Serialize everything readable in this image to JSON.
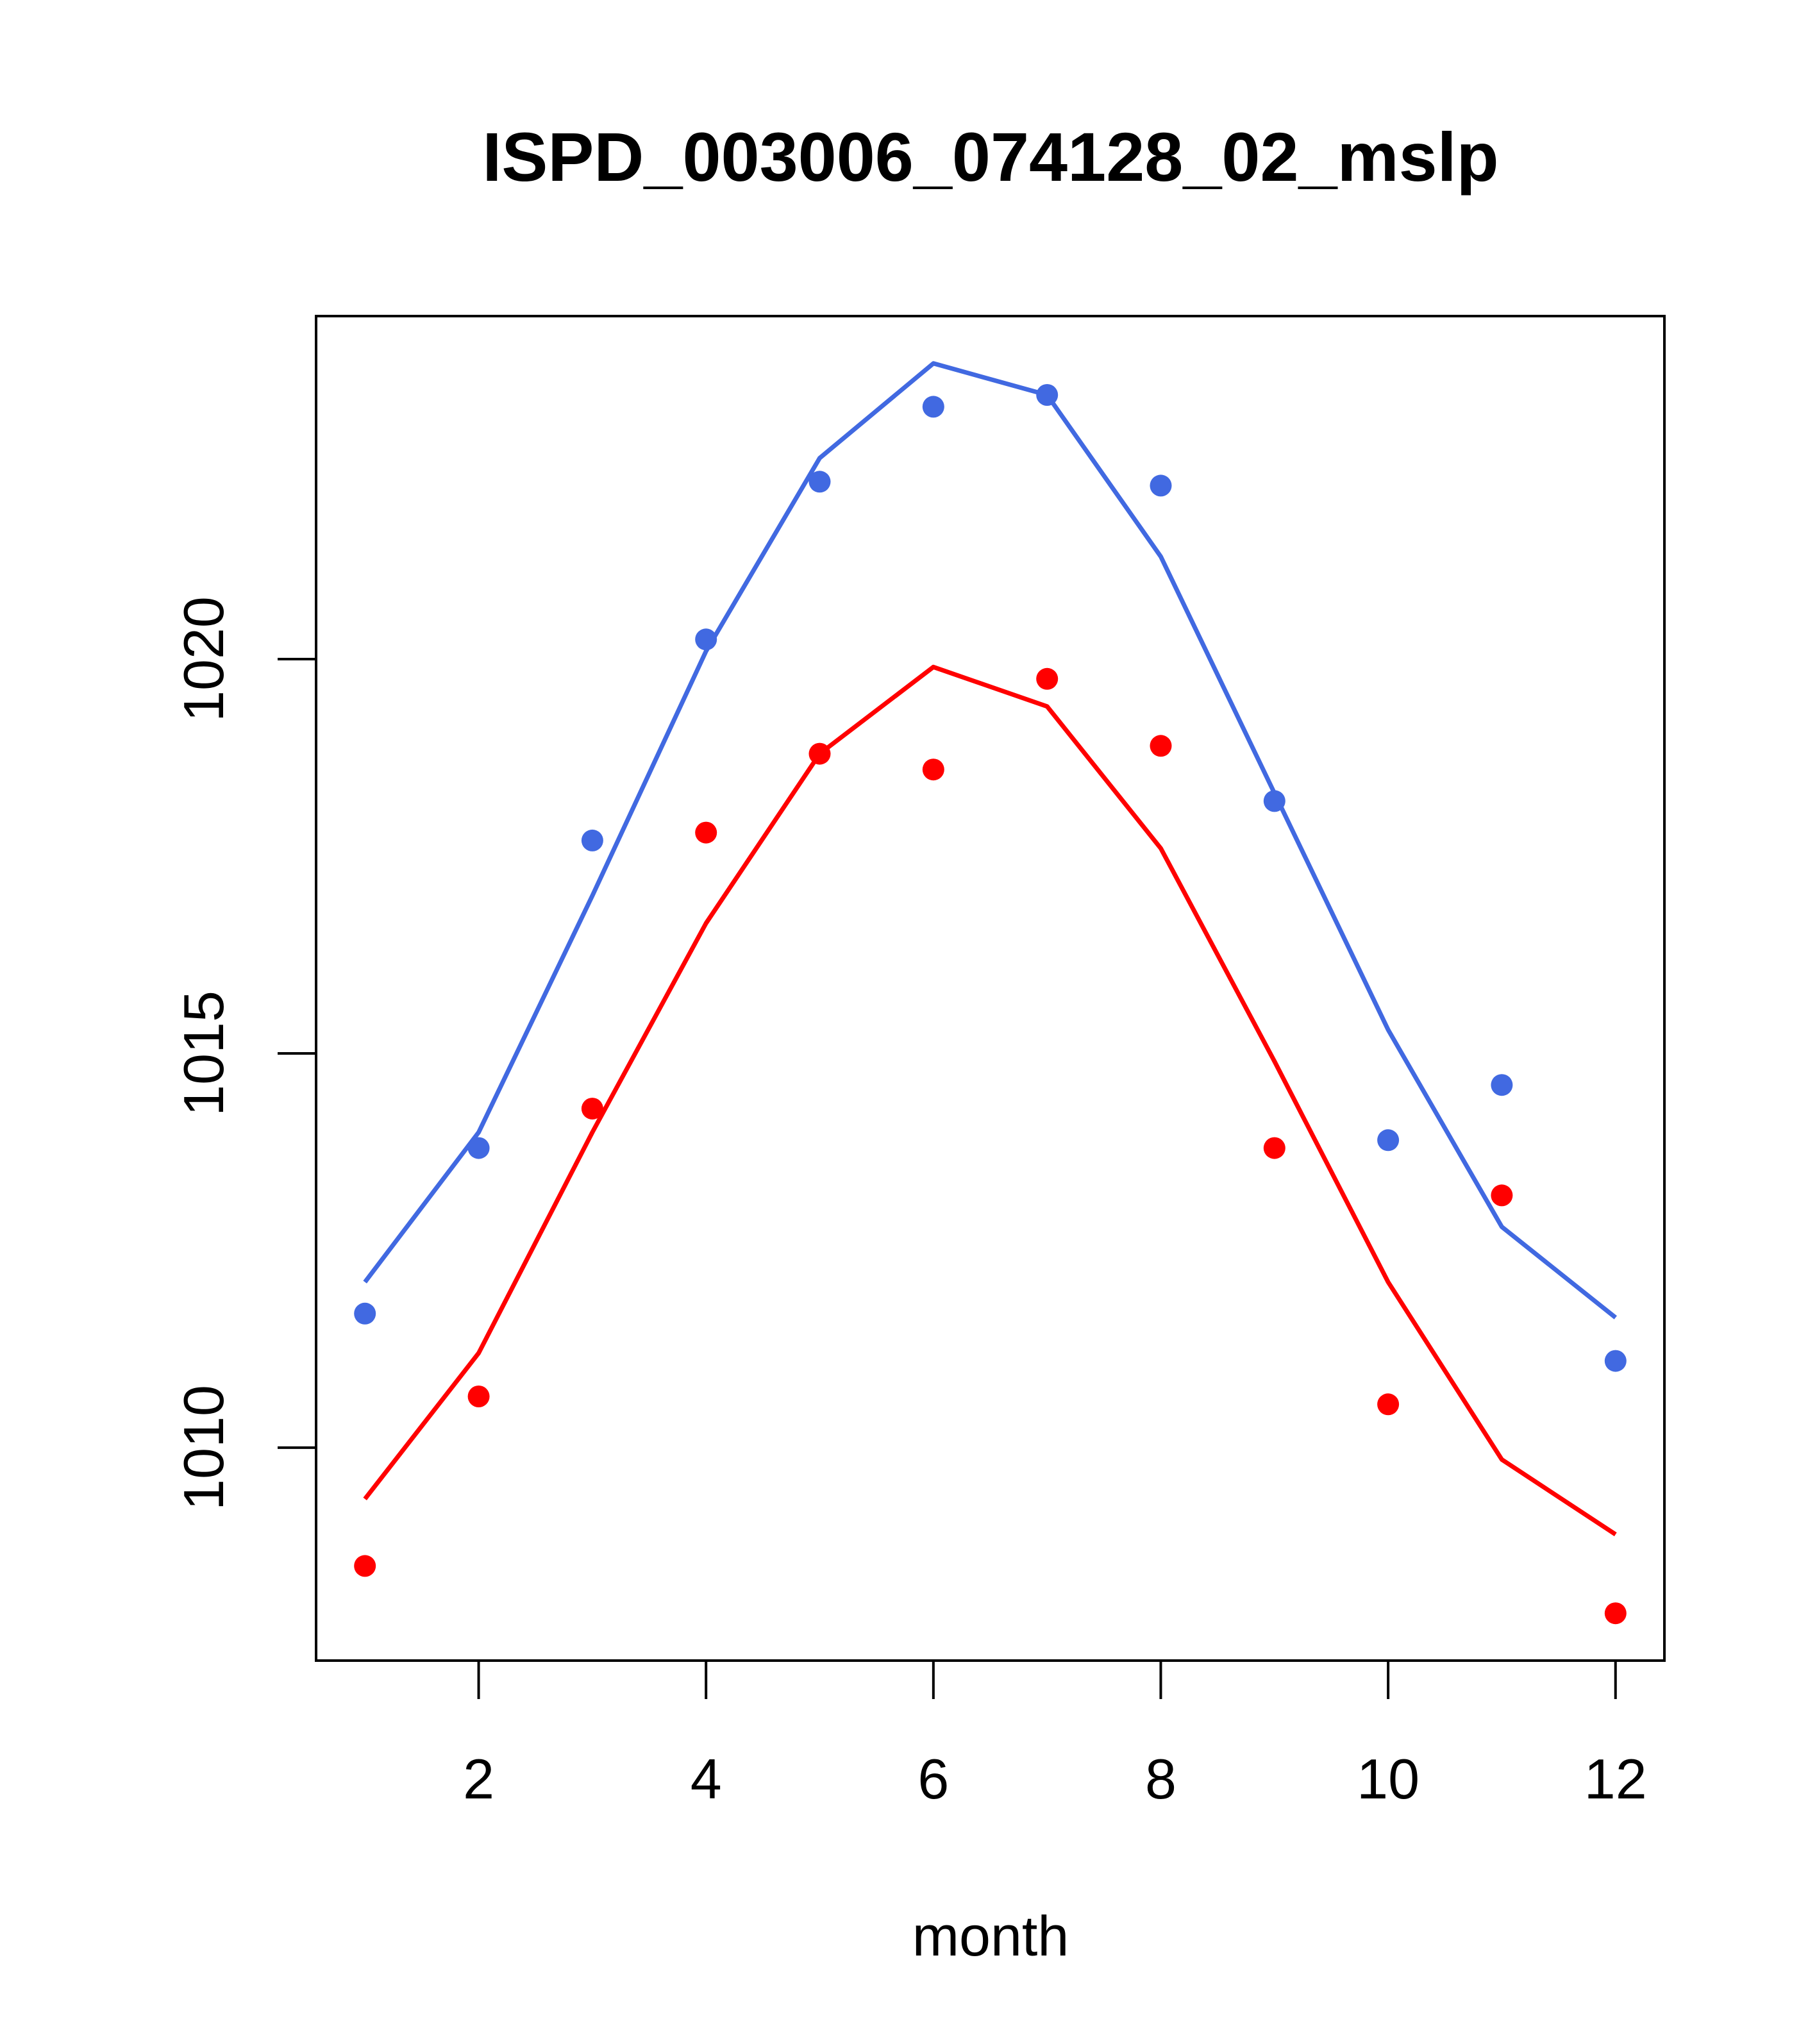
{
  "chart_data": {
    "type": "line",
    "title": "ISPD_003006_074128_02_mslp",
    "xlabel": "month",
    "ylabel": "",
    "xlim": [
      0.57,
      12.43
    ],
    "ylim": [
      1007.3,
      1024.35
    ],
    "xticks": [
      2,
      4,
      6,
      8,
      10,
      12
    ],
    "yticks": [
      1010,
      1015,
      1020
    ],
    "grid": false,
    "legend": "none",
    "x": [
      1,
      2,
      3,
      4,
      5,
      6,
      7,
      8,
      9,
      10,
      11,
      12
    ],
    "series": [
      {
        "name": "blue",
        "color": "#4169e1",
        "line_values": [
          1012.1,
          1014.0,
          1017.0,
          1020.1,
          1022.55,
          1023.75,
          1023.35,
          1021.3,
          1018.3,
          1015.3,
          1012.8,
          1011.65
        ],
        "point_values": [
          1011.7,
          1013.8,
          1017.7,
          1020.25,
          1022.25,
          1023.2,
          1023.35,
          1022.2,
          1018.2,
          1013.9,
          1014.6,
          1011.1
        ]
      },
      {
        "name": "red",
        "color": "#ff0000",
        "line_values": [
          1009.35,
          1011.2,
          1014.0,
          1016.65,
          1018.8,
          1019.9,
          1019.4,
          1017.6,
          1014.9,
          1012.1,
          1009.85,
          1008.9
        ],
        "point_values": [
          1008.5,
          1010.65,
          1014.3,
          1017.8,
          1018.8,
          1018.6,
          1019.75,
          1018.9,
          1013.8,
          1010.55,
          1013.2,
          1007.9
        ]
      }
    ]
  }
}
